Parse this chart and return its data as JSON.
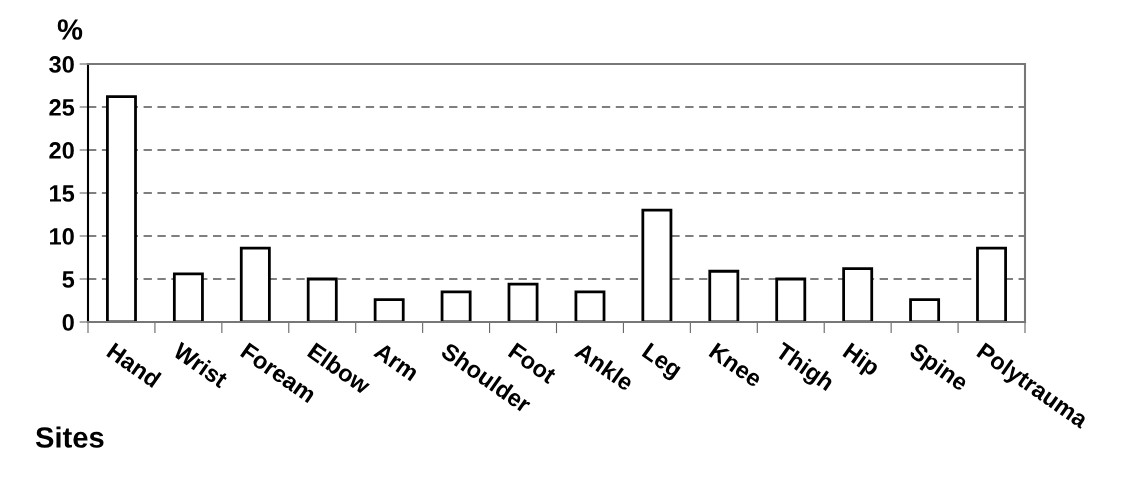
{
  "chart_data": {
    "type": "bar",
    "categories": [
      "Hand",
      "Wrist",
      "Foream",
      "Elbow",
      "Arm",
      "Shoulder",
      "Foot",
      "Ankle",
      "Leg",
      "Knee",
      "Thigh",
      "Hip",
      "Spine",
      "Polytrauma"
    ],
    "values": [
      26.2,
      5.6,
      8.6,
      5.0,
      2.6,
      3.5,
      4.4,
      3.5,
      13.0,
      5.9,
      5.0,
      6.2,
      2.6,
      8.6
    ],
    "color": "#ffffff",
    "xlabel": "Sites",
    "ylabel": "%",
    "ylim": [
      0,
      30
    ],
    "yticks": [
      0,
      5,
      10,
      15,
      20,
      25,
      30
    ],
    "grid": "y",
    "legend": false
  }
}
